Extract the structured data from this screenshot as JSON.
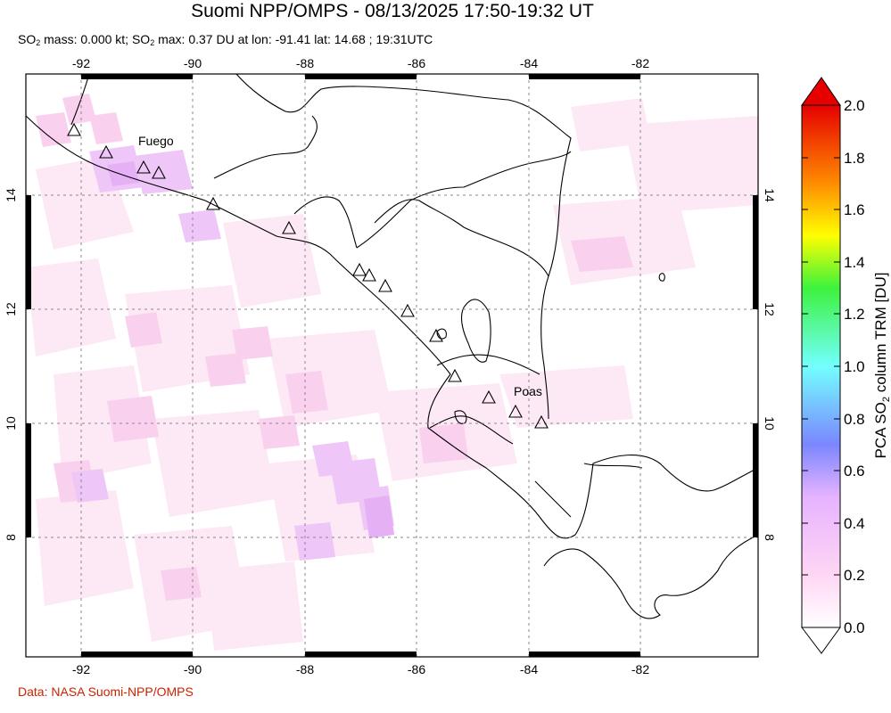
{
  "title": "Suomi NPP/OMPS - 08/13/2025 17:50-19:32 UT",
  "subtitle": {
    "so2": "SO",
    "sub": "2",
    "mass_label": " mass: 0.000 kt; ",
    "max_label": " max: 0.37 DU at lon: -91.41 lat: 14.68 ; 19:31UTC"
  },
  "credit": "Data: NASA Suomi-NPP/OMPS",
  "map": {
    "lon_ticks": [
      "-92",
      "-90",
      "-88",
      "-86",
      "-84",
      "-82"
    ],
    "lat_ticks": [
      "14",
      "12",
      "10",
      "8"
    ],
    "volcano_labels": {
      "fuego": "Fuego",
      "poas": "Poas"
    }
  },
  "colorbar": {
    "label_pre": "PCA SO",
    "label_sub": "2",
    "label_post": " column TRM [DU]",
    "ticks": [
      "2.0",
      "1.8",
      "1.6",
      "1.4",
      "1.2",
      "1.0",
      "0.8",
      "0.6",
      "0.4",
      "0.2",
      "0.0"
    ],
    "colors": [
      "#ffffff",
      "#ffd6f4",
      "#e6b3ff",
      "#7b86ff",
      "#73ffff",
      "#3df23d",
      "#ffff00",
      "#ff8c00",
      "#e60000"
    ]
  }
}
